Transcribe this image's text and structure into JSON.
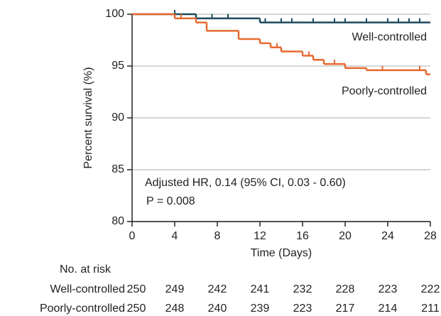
{
  "chart_data": {
    "type": "kaplan-meier",
    "x_label": "Time (Days)",
    "y_label": "Percent survival (%)",
    "xlim": [
      0,
      28
    ],
    "xticks": [
      0,
      4,
      8,
      12,
      16,
      20,
      24,
      28
    ],
    "ylim": [
      80,
      100
    ],
    "yticks": [
      80,
      85,
      90,
      95,
      100
    ],
    "grid": true,
    "annotations": [
      "Adjusted HR, 0.14 (95% CI, 0.03 - 0.60)",
      "P = 0.008"
    ],
    "series": [
      {
        "name": "Well-controlled",
        "color": "#1e4a5e",
        "x": [
          0,
          6,
          12
        ],
        "values": [
          100,
          99.6,
          99.2
        ],
        "censored_x": [
          4,
          7.5,
          9,
          12.5,
          14,
          15,
          17,
          19,
          20,
          22,
          24,
          25,
          26,
          27
        ]
      },
      {
        "name": "Poorly-controlled",
        "color": "#e8692f",
        "x": [
          0,
          4,
          6,
          7,
          10,
          12,
          13,
          14,
          16,
          17,
          18,
          20,
          22,
          27.6
        ],
        "values": [
          100,
          99.6,
          99.2,
          98.4,
          97.6,
          97.2,
          96.8,
          96.4,
          96.0,
          95.6,
          95.2,
          94.8,
          94.6,
          94.2
        ],
        "censored_x": [
          4.6,
          13.6,
          16.6,
          19,
          23.5,
          27
        ]
      }
    ],
    "at_risk": {
      "title": "No. at risk",
      "rows": [
        {
          "name": "Well-controlled",
          "counts": [
            250,
            249,
            242,
            241,
            232,
            228,
            223,
            222
          ]
        },
        {
          "name": "Poorly-controlled",
          "counts": [
            250,
            248,
            240,
            239,
            223,
            217,
            214,
            211
          ]
        }
      ]
    }
  }
}
